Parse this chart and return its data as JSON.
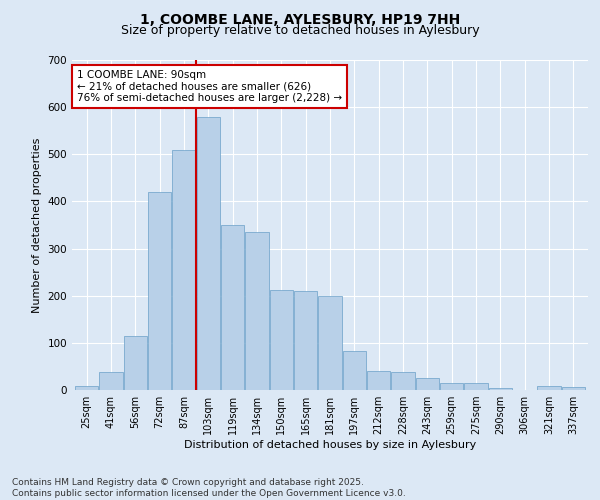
{
  "title": "1, COOMBE LANE, AYLESBURY, HP19 7HH",
  "subtitle": "Size of property relative to detached houses in Aylesbury",
  "xlabel": "Distribution of detached houses by size in Aylesbury",
  "ylabel": "Number of detached properties",
  "categories": [
    "25sqm",
    "41sqm",
    "56sqm",
    "72sqm",
    "87sqm",
    "103sqm",
    "119sqm",
    "134sqm",
    "150sqm",
    "165sqm",
    "181sqm",
    "197sqm",
    "212sqm",
    "228sqm",
    "243sqm",
    "259sqm",
    "275sqm",
    "290sqm",
    "306sqm",
    "321sqm",
    "337sqm"
  ],
  "values": [
    8,
    38,
    115,
    420,
    510,
    580,
    350,
    335,
    213,
    210,
    200,
    83,
    40,
    38,
    25,
    15,
    15,
    4,
    0,
    8,
    7
  ],
  "bar_color": "#b8d0e8",
  "bar_edge_color": "#6aa0c8",
  "vline_x_index": 4.5,
  "vline_color": "#cc0000",
  "annotation_text": "1 COOMBE LANE: 90sqm\n← 21% of detached houses are smaller (626)\n76% of semi-detached houses are larger (2,228) →",
  "annotation_box_color": "#cc0000",
  "ylim": [
    0,
    700
  ],
  "yticks": [
    0,
    100,
    200,
    300,
    400,
    500,
    600,
    700
  ],
  "background_color": "#dce8f5",
  "plot_background_color": "#dce8f5",
  "footer_text": "Contains HM Land Registry data © Crown copyright and database right 2025.\nContains public sector information licensed under the Open Government Licence v3.0.",
  "title_fontsize": 10,
  "subtitle_fontsize": 9,
  "label_fontsize": 8,
  "tick_fontsize": 7,
  "footer_fontsize": 6.5,
  "annotation_fontsize": 7.5
}
